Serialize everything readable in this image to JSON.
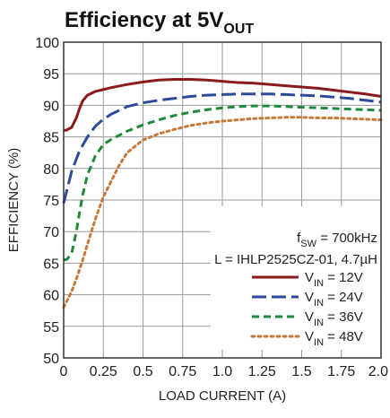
{
  "chart_data": {
    "type": "line",
    "title": {
      "main": "Efficiency at 5V",
      "subscript": "OUT"
    },
    "xlabel": "LOAD CURRENT (A)",
    "ylabel": "EFFICIENCY (%)",
    "xlim": [
      0,
      2.0
    ],
    "ylim": [
      50,
      100
    ],
    "x_ticks": [
      0,
      0.25,
      0.5,
      0.75,
      1.0,
      1.25,
      1.5,
      1.75,
      2.0
    ],
    "x_tick_labels": [
      "0",
      "0.25",
      "0.5",
      "0.75",
      "1.0",
      "1.25",
      "1.5",
      "1.75",
      "2.0"
    ],
    "y_ticks": [
      50,
      55,
      60,
      65,
      70,
      75,
      80,
      85,
      90,
      95,
      100
    ],
    "y_tick_labels": [
      "50",
      "55",
      "60",
      "65",
      "70",
      "75",
      "80",
      "85",
      "90",
      "95",
      "100"
    ],
    "grid": true,
    "legend_position": "bottom-right",
    "annotations": [
      {
        "parts": [
          {
            "text": "f",
            "sub": false
          },
          {
            "text": "SW",
            "sub": true
          },
          {
            "text": " = 700kHz",
            "sub": false
          }
        ]
      },
      {
        "parts": [
          {
            "text": "L = IHLP2525CZ-01, 4.7µH",
            "sub": false
          }
        ]
      }
    ],
    "series": [
      {
        "name": "V_IN = 12V",
        "label": {
          "main": "V",
          "sub": "IN",
          "tail": " = 12V"
        },
        "color": "#8b1a1a",
        "dash": "solid",
        "x": [
          0,
          0.02,
          0.05,
          0.08,
          0.1,
          0.12,
          0.15,
          0.2,
          0.25,
          0.3,
          0.4,
          0.5,
          0.6,
          0.7,
          0.8,
          0.9,
          1.0,
          1.1,
          1.2,
          1.3,
          1.4,
          1.5,
          1.6,
          1.7,
          1.8,
          1.9,
          2.0
        ],
        "values": [
          86.0,
          86.1,
          86.5,
          88.0,
          89.5,
          90.7,
          91.6,
          92.2,
          92.5,
          92.8,
          93.3,
          93.7,
          94.0,
          94.1,
          94.1,
          94.0,
          93.8,
          93.6,
          93.5,
          93.3,
          93.1,
          92.9,
          92.7,
          92.4,
          92.1,
          91.8,
          91.4
        ]
      },
      {
        "name": "V_IN = 24V",
        "label": {
          "main": "V",
          "sub": "IN",
          "tail": " = 24V"
        },
        "color": "#2c4a9a",
        "dash": "long",
        "x": [
          0,
          0.02,
          0.05,
          0.08,
          0.1,
          0.15,
          0.2,
          0.25,
          0.3,
          0.4,
          0.5,
          0.6,
          0.7,
          0.8,
          0.9,
          1.0,
          1.1,
          1.2,
          1.3,
          1.4,
          1.5,
          1.6,
          1.7,
          1.8,
          1.9,
          2.0
        ],
        "values": [
          74.5,
          76.5,
          79.5,
          81.5,
          82.8,
          85.0,
          86.7,
          87.8,
          88.6,
          89.8,
          90.4,
          90.8,
          91.1,
          91.4,
          91.6,
          91.7,
          91.8,
          91.8,
          91.8,
          91.7,
          91.6,
          91.5,
          91.3,
          91.1,
          90.8,
          90.5
        ]
      },
      {
        "name": "V_IN = 36V",
        "label": {
          "main": "V",
          "sub": "IN",
          "tail": " = 36V"
        },
        "color": "#1e8a3a",
        "dash": "medium",
        "x": [
          0,
          0.02,
          0.05,
          0.08,
          0.1,
          0.12,
          0.15,
          0.2,
          0.25,
          0.3,
          0.4,
          0.5,
          0.6,
          0.7,
          0.8,
          0.9,
          1.0,
          1.1,
          1.2,
          1.3,
          1.4,
          1.5,
          1.6,
          1.7,
          1.8,
          1.9,
          2.0
        ],
        "values": [
          65.5,
          65.6,
          66.5,
          70.0,
          73.0,
          75.8,
          79.0,
          82.0,
          83.8,
          84.6,
          85.9,
          86.9,
          87.7,
          88.4,
          88.9,
          89.3,
          89.6,
          89.8,
          89.9,
          89.9,
          89.8,
          89.7,
          89.6,
          89.5,
          89.4,
          89.3,
          89.2
        ]
      },
      {
        "name": "V_IN = 48V",
        "label": {
          "main": "V",
          "sub": "IN",
          "tail": " = 48V"
        },
        "color": "#c47a3a",
        "dash": "dotted",
        "x": [
          0,
          0.02,
          0.05,
          0.08,
          0.1,
          0.12,
          0.15,
          0.2,
          0.25,
          0.3,
          0.35,
          0.4,
          0.5,
          0.6,
          0.7,
          0.8,
          0.9,
          1.0,
          1.1,
          1.2,
          1.3,
          1.4,
          1.5,
          1.6,
          1.7,
          1.8,
          1.9,
          2.0
        ],
        "values": [
          58.0,
          59.0,
          60.5,
          62.5,
          64.0,
          65.5,
          68.0,
          72.0,
          75.5,
          78.0,
          80.5,
          82.5,
          84.5,
          85.5,
          86.2,
          86.8,
          87.2,
          87.5,
          87.7,
          87.9,
          88.0,
          88.1,
          88.1,
          88.0,
          88.0,
          87.9,
          87.8,
          87.7
        ]
      }
    ]
  }
}
